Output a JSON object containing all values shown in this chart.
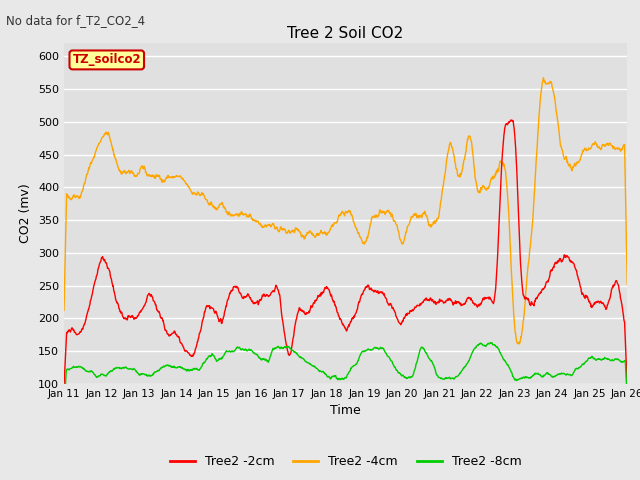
{
  "title": "Tree 2 Soil CO2",
  "subtitle": "No data for f_T2_CO2_4",
  "xlabel": "Time",
  "ylabel": "CO2 (mv)",
  "ylim": [
    100,
    620
  ],
  "yticks": [
    100,
    150,
    200,
    250,
    300,
    350,
    400,
    450,
    500,
    550,
    600
  ],
  "x_labels": [
    "Jan 11",
    "Jan 12",
    "Jan 13",
    "Jan 14",
    "Jan 15",
    "Jan 16",
    "Jan 17",
    "Jan 18",
    "Jan 19",
    "Jan 20",
    "Jan 21",
    "Jan 22",
    "Jan 23",
    "Jan 24",
    "Jan 25",
    "Jan 26"
  ],
  "legend_label": "TZ_soilco2",
  "line_colors": {
    "2cm": "#ff0000",
    "4cm": "#ffa500",
    "8cm": "#00cc00"
  },
  "background_color": "#e8e8e8",
  "plot_bg_color": "#e0e0e0",
  "grid_color": "#ffffff"
}
